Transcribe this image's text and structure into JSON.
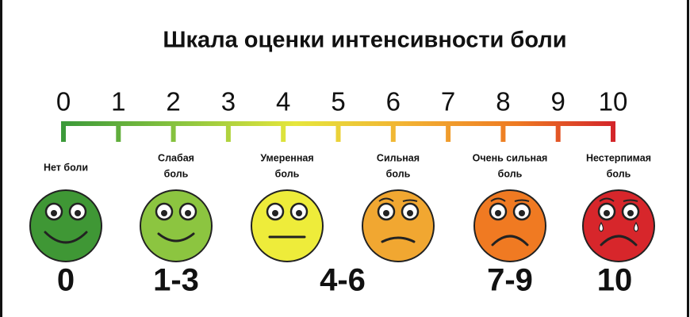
{
  "title": "Шкала оценки интенсивности боли",
  "scale": [
    "0",
    "1",
    "2",
    "3",
    "4",
    "5",
    "6",
    "7",
    "8",
    "9",
    "10"
  ],
  "faces": [
    {
      "label": [
        "Нет боли"
      ]
    },
    {
      "label": [
        "Слабая",
        "боль"
      ]
    },
    {
      "label": [
        "Умеренная",
        "боль"
      ]
    },
    {
      "label": [
        "Сильная",
        "боль"
      ]
    },
    {
      "label": [
        "Очень сильная",
        "боль"
      ]
    },
    {
      "label": [
        "Нестерпимая",
        "боль"
      ]
    }
  ],
  "ranges": [
    "0",
    "1-3",
    "4-6",
    "7-9",
    "10"
  ]
}
